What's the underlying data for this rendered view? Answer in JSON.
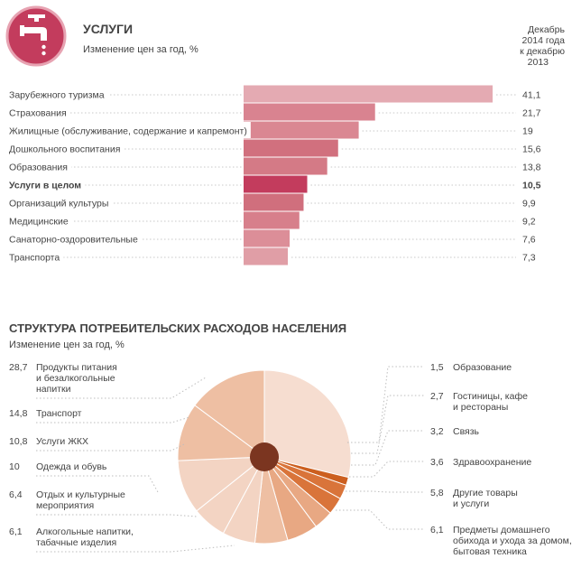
{
  "header": {
    "title": "УСЛУГИ",
    "subtitle": "Изменение цен за год, %",
    "period_lines": [
      "Декабрь",
      "2014 года",
      "к декабрю",
      "2013"
    ],
    "icon": "faucet-icon",
    "icon_color": "#c33c5d"
  },
  "chart_data": [
    {
      "type": "bar",
      "orientation": "horizontal",
      "title": "УСЛУГИ",
      "subtitle": "Изменение цен за год, %",
      "categories": [
        "Зарубежного туризма",
        "Страхования",
        "Жилищные (обслуживание, содержание и капремонт)",
        "Дошкольного  воспитания",
        "Образования",
        "Услуги в целом",
        "Организаций культуры",
        "Медицинские",
        "Санаторно-оздоровительные",
        "Транспорта"
      ],
      "values": [
        41.1,
        21.7,
        19,
        15.6,
        13.8,
        10.5,
        9.9,
        9.2,
        7.6,
        7.3
      ],
      "value_labels": [
        "41,1",
        "21,7",
        "19",
        "15,6",
        "13,8",
        "10,5",
        "9,9",
        "9,2",
        "7,6",
        "7,3"
      ],
      "highlight_index": 5,
      "colors": [
        "#e4aab2",
        "#d98390",
        "#da8792",
        "#d1707e",
        "#d47a86",
        "#c33c5d",
        "#d06f7d",
        "#d77f8b",
        "#dc8e98",
        "#e09ea6"
      ],
      "xlim": [
        0,
        43
      ]
    },
    {
      "type": "pie",
      "title": "СТРУКТУРА ПОТРЕБИТЕЛЬСКИХ РАСХОДОВ НАСЕЛЕНИЯ",
      "subtitle": "Изменение цен за год, %",
      "left_categories": [
        "Продукты питания и безалкогольные напитки",
        "Транспорт",
        "Услуги ЖКХ",
        "Одежда и обувь",
        "Отдых и культурные мероприятия",
        "Алкогольные напитки, табачные изделия"
      ],
      "left_values": [
        28.7,
        14.8,
        10.8,
        10,
        6.4,
        6.1
      ],
      "left_value_labels": [
        "28,7",
        "14,8",
        "10,8",
        "10",
        "6,4",
        "6,1"
      ],
      "left_label_lines": [
        [
          "Продукты питания",
          "и безалкогольные",
          "напитки"
        ],
        [
          "Транспорт"
        ],
        [
          "Услуги ЖКХ"
        ],
        [
          "Одежда и обувь"
        ],
        [
          "Отдых и культурные",
          "мероприятия"
        ],
        [
          "Алкогольные напитки,",
          "табачные изделия"
        ]
      ],
      "right_categories": [
        "Образование",
        "Гостиницы, кафе и рестораны",
        "Связь",
        "Здравоохранение",
        "Другие товары и услуги",
        "Предметы домашнего обихода и ухода за домом, бытовая техника"
      ],
      "right_values": [
        1.5,
        2.7,
        3.2,
        3.6,
        5.8,
        6.1
      ],
      "right_value_labels": [
        "1,5",
        "2,7",
        "3,2",
        "3,6",
        "5,8",
        "6,1"
      ],
      "right_label_lines": [
        [
          "Образование"
        ],
        [
          "Гостиницы, кафе",
          "и рестораны"
        ],
        [
          "Связь"
        ],
        [
          "Здравоохранение"
        ],
        [
          "Другие товары",
          "и услуги"
        ],
        [
          "Предметы домашнего",
          "обихода и ухода за домом,",
          "бытовая техника"
        ]
      ],
      "slice_colors": {
        "food": "#f6ddd0",
        "large": "#f3d4c3",
        "mid": "#eebfa3",
        "small": "#e8a883",
        "orange_dark": "#cc5f1f",
        "orange_mid": "#d9743a",
        "center": "#7b3520"
      }
    }
  ]
}
